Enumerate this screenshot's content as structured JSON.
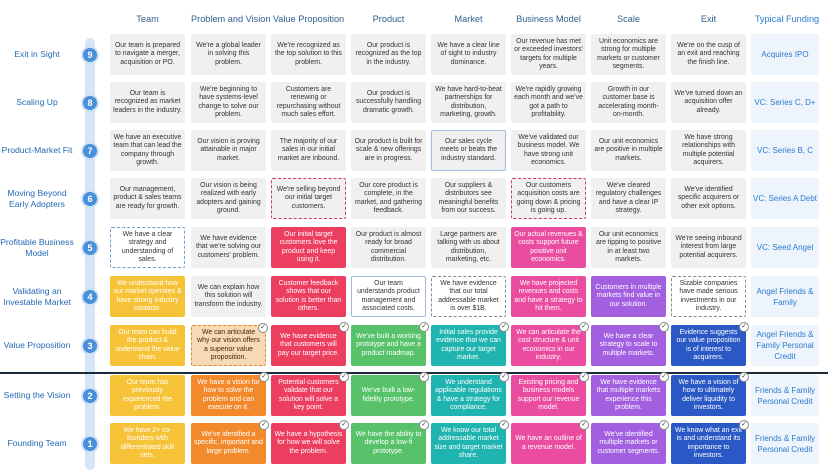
{
  "columns": [
    "Team",
    "Problem and Vision",
    "Value Proposition",
    "Product",
    "Market",
    "Business Model",
    "Scale",
    "Exit"
  ],
  "funding_header": "Typical Funding",
  "colors": {
    "level_circle": "#4a8fd9",
    "rail": "#d6e5f5",
    "label": "#2469b3",
    "funding": "#2a7bd1"
  },
  "rows": [
    {
      "level": "9",
      "label": "Exit in Sight",
      "funding": "Acquires IPO",
      "cells": [
        {
          "text": "Our team is prepared to navigate a merger, acquisition or PO.",
          "style": "plain",
          "check": false
        },
        {
          "text": "We're a global leader in solving this problem.",
          "style": "plain",
          "check": false
        },
        {
          "text": "We're recognized as the top solution to this problem.",
          "style": "plain",
          "check": false
        },
        {
          "text": "Our product is recognized as the top in the industry.",
          "style": "plain",
          "check": false
        },
        {
          "text": "We have a clear line of sight to industry dominance.",
          "style": "plain",
          "check": false
        },
        {
          "text": "Our revenue has met or exceeded investors' targets for multiple years.",
          "style": "plain",
          "check": false
        },
        {
          "text": "Unit economics are strong for multiple markets or customer segments.",
          "style": "plain",
          "check": false
        },
        {
          "text": "We're on the cusp of an exit and reaching the finish line.",
          "style": "plain",
          "check": false
        }
      ]
    },
    {
      "level": "8",
      "label": "Scaling Up",
      "funding": "VC: Series C, D+",
      "cells": [
        {
          "text": "Our team is recognized as market leaders in the industry.",
          "style": "plain",
          "check": false
        },
        {
          "text": "We're beginning to have systems-level change to solve our problem.",
          "style": "plain",
          "check": false
        },
        {
          "text": "Customers are renewing or repurchasing without much sales effort.",
          "style": "plain",
          "check": false
        },
        {
          "text": "Our product is successfully handling dramatic growth.",
          "style": "plain",
          "check": false
        },
        {
          "text": "We have hard-to-beat partnerships for distribution, marketing, growth.",
          "style": "plain",
          "check": false
        },
        {
          "text": "We're rapidly growing each month and we've got a path to profitability.",
          "style": "plain",
          "check": false
        },
        {
          "text": "Growth in our customer base is accelerating month-on-month.",
          "style": "plain",
          "check": false
        },
        {
          "text": "We've turned down an acquisition offer already.",
          "style": "plain",
          "check": false
        }
      ]
    },
    {
      "level": "7",
      "label": "Product-Market Fit",
      "funding": "VC: Series B, C",
      "cells": [
        {
          "text": "We have an executive team that can lead the company through growth.",
          "style": "plain",
          "check": false
        },
        {
          "text": "Our vision is proving attainable in major market.",
          "style": "plain",
          "check": false
        },
        {
          "text": "The majority of our sales in our initial market are inbound.",
          "style": "plain",
          "check": false
        },
        {
          "text": "Our product is built for scale & new offerings are in progress.",
          "style": "plain",
          "check": false
        },
        {
          "text": "Our sales cycle meets or beats the industry standard.",
          "style": "outline",
          "check": false
        },
        {
          "text": "We've validated our business model. We have strong unit economics.",
          "style": "plain",
          "check": false
        },
        {
          "text": "Our unit economics are positive in multiple markets.",
          "style": "plain",
          "check": false
        },
        {
          "text": "We have strong relationships with multiple potential acquirers.",
          "style": "plain",
          "check": false
        }
      ]
    },
    {
      "level": "6",
      "label": "Moving Beyond Early Adopters",
      "funding": "VC: Series A Debt",
      "cells": [
        {
          "text": "Our management, product & sales teams are ready for growth.",
          "style": "plain",
          "check": false
        },
        {
          "text": "Our vision is being realized with early adopters and gaining ground.",
          "style": "plain",
          "check": false
        },
        {
          "text": "We're selling beyond our initial target customers.",
          "style": "dash",
          "check": false
        },
        {
          "text": "Our core product is complete, in the market, and gathering feedback.",
          "style": "plain",
          "check": false
        },
        {
          "text": "Our suppliers & distributors see meaningful benefits from our success.",
          "style": "plain",
          "check": false
        },
        {
          "text": "Our customers acquisition costs are going down & pricing is going up.",
          "style": "dash",
          "check": false
        },
        {
          "text": "We've cleared regulatory challenges and have a clear IP strategy.",
          "style": "plain",
          "check": false
        },
        {
          "text": "We've identified specific acquirers or other exit options.",
          "style": "plain",
          "check": false
        }
      ]
    },
    {
      "level": "5",
      "label": "Profitable Business Model",
      "funding": "VC: Seed Angel",
      "cells": [
        {
          "text": "We have a clear strategy and understanding of sales.",
          "style": "dashblue",
          "check": false
        },
        {
          "text": "We have evidence that we're solving our customers' problem.",
          "style": "plain",
          "check": false
        },
        {
          "text": "Our initial target customers love the product and keep using it.",
          "style": "red",
          "check": false
        },
        {
          "text": "Our product is almost ready for broad commercial distribution.",
          "style": "plain",
          "check": false
        },
        {
          "text": "Large partners are talking with us about distribution, marketing, etc.",
          "style": "plain",
          "check": false
        },
        {
          "text": "Our actual revenues & costs support future positive unit economics.",
          "style": "pink",
          "check": false
        },
        {
          "text": "Our unit economics are tipping to positive in at least two markets.",
          "style": "plain",
          "check": false
        },
        {
          "text": "We're seeing inbound interest from large potential acquirers.",
          "style": "plain",
          "check": false
        }
      ]
    },
    {
      "level": "4",
      "label": "Validating an Investable Market",
      "funding": "Angel Friends & Family",
      "cells": [
        {
          "text": "We understand how our market operates & have strong industry contacts.",
          "style": "yellow",
          "check": false
        },
        {
          "text": "We can explain how this solution will transform the industry.",
          "style": "plain",
          "check": false
        },
        {
          "text": "Customer feedback shows that our solution is better than others.",
          "style": "red",
          "check": false
        },
        {
          "text": "Our team understands product management and associated costs.",
          "style": "white",
          "check": false
        },
        {
          "text": "We have evidence that our total addressable market is over $1B.",
          "style": "dashgray",
          "check": false
        },
        {
          "text": "We have projected revenues and costs and have a strategy to hit them.",
          "style": "pink",
          "check": false
        },
        {
          "text": "Customers in multiple markets find value in our solution.",
          "style": "purple",
          "check": false
        },
        {
          "text": "Sizable companies have made serious investments in our industry.",
          "style": "dashgray",
          "check": false
        }
      ]
    },
    {
      "level": "3",
      "label": "Value Proposition",
      "funding": "Angel Friends & Family Personal Credit",
      "cells": [
        {
          "text": "Our team can build the product & understand the value chain.",
          "style": "yellow",
          "check": false
        },
        {
          "text": "We can articulate why our vision offers a superior value proposition.",
          "style": "orange-dash",
          "check": true
        },
        {
          "text": "We have evidence that customers will pay our target price.",
          "style": "red",
          "check": true
        },
        {
          "text": "We've built a working prototype and have a product roadmap.",
          "style": "green",
          "check": true
        },
        {
          "text": "Initial sales provide evidence that we can capture our target market.",
          "style": "teal",
          "check": true
        },
        {
          "text": "We can articulate the cost structure & unit economics in our industry.",
          "style": "pink",
          "check": true
        },
        {
          "text": "We have a clear strategy to scale to multiple markets.",
          "style": "purple",
          "check": true
        },
        {
          "text": "Evidence suggests our value proposition is of interest to acquirers.",
          "style": "blue",
          "check": true
        }
      ]
    },
    {
      "level": "2",
      "label": "Setting the Vision",
      "funding": "Friends & Family Personal Credit",
      "cells": [
        {
          "text": "Our team has previously experienced the problem.",
          "style": "yellow",
          "check": false
        },
        {
          "text": "We have a vision for how to solve the problem and can execute on it.",
          "style": "orange",
          "check": true
        },
        {
          "text": "Potential customers validate that our solution will solve a key point.",
          "style": "red",
          "check": true
        },
        {
          "text": "We've built a low-fidelity prototype.",
          "style": "green",
          "check": true
        },
        {
          "text": "We understand applicable regulations & have a strategy for compliance.",
          "style": "teal",
          "check": true
        },
        {
          "text": "Existing pricing and business models support our revenue model.",
          "style": "pink",
          "check": true
        },
        {
          "text": "We have evidence that multiple markets experience this problem.",
          "style": "purple",
          "check": true
        },
        {
          "text": "We have a vision of how to ultimately deliver liquidity to investors.",
          "style": "blue",
          "check": true
        }
      ]
    },
    {
      "level": "1",
      "label": "Founding Team",
      "funding": "Friends & Family Personal Credit",
      "cells": [
        {
          "text": "We have 2+ co-founders with differentiated skill sets.",
          "style": "yellow",
          "check": false
        },
        {
          "text": "We've identified a specific, important and large problem.",
          "style": "orange",
          "check": true
        },
        {
          "text": "We have a hypothesis for how we will solve the problem.",
          "style": "red",
          "check": true
        },
        {
          "text": "We have the ability to develop a low-fi prototype.",
          "style": "green",
          "check": true
        },
        {
          "text": "We know our total addressable market size and target market share.",
          "style": "teal",
          "check": true
        },
        {
          "text": "We have an outline of a revenue model.",
          "style": "pink",
          "check": true
        },
        {
          "text": "We've identified multiple markets or customer segments.",
          "style": "purple",
          "check": true
        },
        {
          "text": "We know what an exit is and understand its importance to investors.",
          "style": "blue",
          "check": true
        }
      ]
    }
  ]
}
